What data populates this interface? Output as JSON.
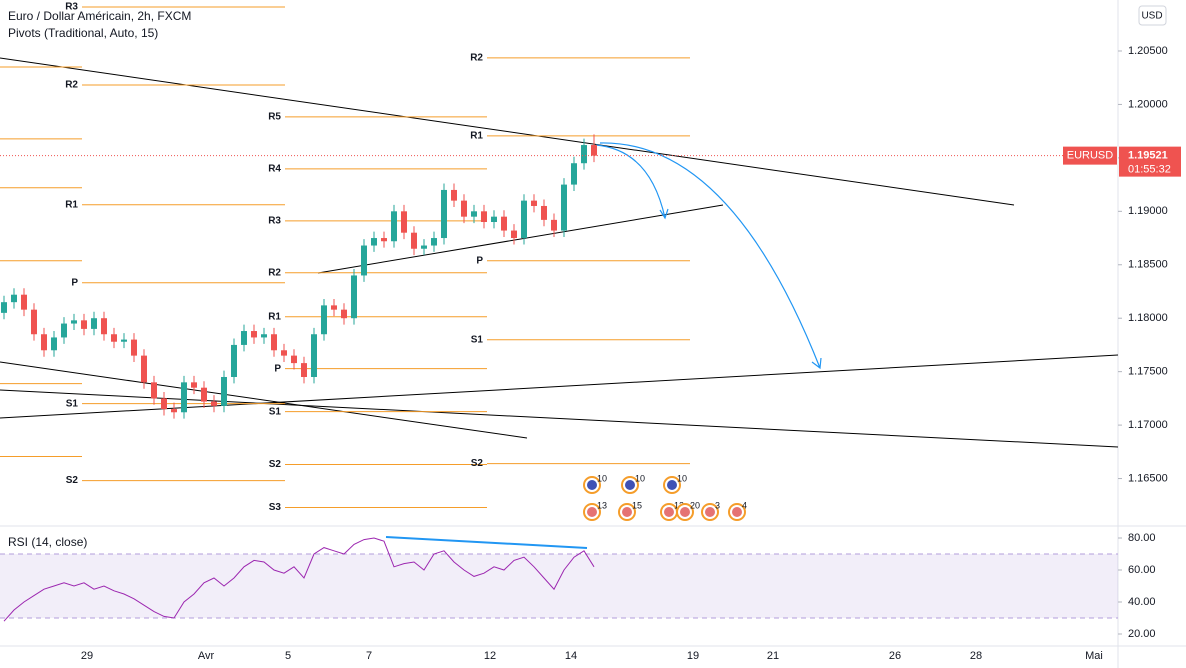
{
  "header": {
    "title": "Euro / Dollar Américain, 2h, FXCM",
    "indicator": "Pivots (Traditional, Auto, 15)",
    "currency": "USD"
  },
  "last_price": {
    "symbol": "EURUSD",
    "value": 1.19521,
    "countdown": "01:55:32"
  },
  "date_labels": [
    "29",
    "Avr",
    "5",
    "7",
    "12",
    "14",
    "19",
    "21",
    "26",
    "28",
    "Mai"
  ],
  "events": [
    "10",
    "10",
    "10",
    "13",
    "15",
    "12",
    "20",
    "3",
    "4"
  ],
  "chart_data": [
    {
      "type": "candlestick",
      "up_color": "#26a69a",
      "down_color": "#ef5350",
      "open": [
        1.1805,
        1.1815,
        1.1822,
        1.1808,
        1.1785,
        1.177,
        1.1782,
        1.1795,
        1.1798,
        1.179,
        1.18,
        1.1785,
        1.1778,
        1.178,
        1.1765,
        1.174,
        1.1725,
        1.1715,
        1.1712,
        1.174,
        1.1735,
        1.1722,
        1.1718,
        1.1745,
        1.1775,
        1.1788,
        1.1782,
        1.1785,
        1.177,
        1.1765,
        1.1758,
        1.1745,
        1.1785,
        1.1812,
        1.1808,
        1.18,
        1.184,
        1.1868,
        1.1875,
        1.1872,
        1.19,
        1.188,
        1.1865,
        1.1868,
        1.1875,
        1.192,
        1.191,
        1.1895,
        1.19,
        1.189,
        1.1895,
        1.1882,
        1.1875,
        1.191,
        1.1905,
        1.1892,
        1.1882,
        1.1925,
        1.1945,
        1.1962
      ],
      "high": [
        1.1821,
        1.1828,
        1.1828,
        1.1814,
        1.1791,
        1.1788,
        1.1801,
        1.1804,
        1.1804,
        1.1806,
        1.1806,
        1.1791,
        1.1786,
        1.1786,
        1.1771,
        1.1746,
        1.1731,
        1.1721,
        1.1746,
        1.1746,
        1.1741,
        1.1728,
        1.1751,
        1.1781,
        1.1794,
        1.1794,
        1.1791,
        1.1791,
        1.1776,
        1.1771,
        1.1764,
        1.1791,
        1.1818,
        1.1818,
        1.1814,
        1.1846,
        1.1874,
        1.1881,
        1.1881,
        1.1906,
        1.1906,
        1.1886,
        1.1874,
        1.1881,
        1.1926,
        1.1926,
        1.1916,
        1.1906,
        1.1906,
        1.1901,
        1.1901,
        1.1888,
        1.1916,
        1.1916,
        1.1911,
        1.1898,
        1.1931,
        1.1951,
        1.1968,
        1.1972
      ],
      "low": [
        1.1799,
        1.1809,
        1.1802,
        1.1779,
        1.1764,
        1.1764,
        1.1776,
        1.1789,
        1.1784,
        1.1784,
        1.1779,
        1.1772,
        1.1772,
        1.1759,
        1.1734,
        1.1719,
        1.1709,
        1.1706,
        1.1706,
        1.1729,
        1.1716,
        1.1712,
        1.1712,
        1.1739,
        1.1769,
        1.1776,
        1.1776,
        1.1764,
        1.1759,
        1.1752,
        1.1739,
        1.1739,
        1.1779,
        1.1802,
        1.1794,
        1.1794,
        1.1834,
        1.1862,
        1.1866,
        1.1866,
        1.1874,
        1.1859,
        1.1859,
        1.1862,
        1.1869,
        1.1904,
        1.1889,
        1.1889,
        1.1884,
        1.1884,
        1.1876,
        1.1869,
        1.1869,
        1.1899,
        1.1886,
        1.1876,
        1.1876,
        1.1919,
        1.1939,
        1.1946
      ],
      "close": [
        1.1815,
        1.1822,
        1.1808,
        1.1785,
        1.177,
        1.1782,
        1.1795,
        1.1798,
        1.179,
        1.18,
        1.1785,
        1.1778,
        1.178,
        1.1765,
        1.174,
        1.1725,
        1.1715,
        1.1712,
        1.174,
        1.1735,
        1.1722,
        1.1718,
        1.1745,
        1.1775,
        1.1788,
        1.1782,
        1.1785,
        1.177,
        1.1765,
        1.1758,
        1.1745,
        1.1785,
        1.1812,
        1.1808,
        1.18,
        1.184,
        1.1868,
        1.1875,
        1.1872,
        1.19,
        1.188,
        1.1865,
        1.1868,
        1.1875,
        1.192,
        1.191,
        1.1895,
        1.19,
        1.189,
        1.1895,
        1.1882,
        1.1875,
        1.191,
        1.1905,
        1.1892,
        1.1882,
        1.1925,
        1.1945,
        1.1962,
        1.19521
      ],
      "ylim": [
        1.20977,
        1.16056
      ],
      "yticks": [
        {
          "value": 1.205,
          "label": "1.20500"
        },
        {
          "value": 1.2,
          "label": "1.20000"
        },
        {
          "value": 1.195,
          "label": "1.19500"
        },
        {
          "value": 1.19,
          "label": "1.19000"
        },
        {
          "value": 1.185,
          "label": "1.18500"
        },
        {
          "value": 1.18,
          "label": "1.18000"
        },
        {
          "value": 1.175,
          "label": "1.17500"
        },
        {
          "value": 1.17,
          "label": "1.17000"
        },
        {
          "value": 1.165,
          "label": "1.16500"
        }
      ],
      "pivot_color": "#f59d2a",
      "pivots": [
        {
          "values": [
            1.2035,
            1.19678,
            1.1922,
            1.18537,
            1.17388,
            1.16706
          ]
        },
        {
          "labels": [
            "R3",
            "R2",
            "R1",
            "P",
            "S1",
            "S2"
          ],
          "values": [
            1.20911,
            1.20182,
            1.19061,
            1.18332,
            1.17201,
            1.16481
          ]
        },
        {
          "labels": [
            "R5",
            "R4",
            "R3",
            "R2",
            "R1",
            "P",
            "S1",
            "S2",
            "S3"
          ],
          "values": [
            1.19883,
            1.19397,
            1.18911,
            1.18425,
            1.18014,
            1.17528,
            1.17126,
            1.16631,
            1.16229
          ]
        },
        {
          "labels": [
            "R2",
            "R1",
            "P",
            "S1",
            "S2"
          ],
          "values": [
            1.20435,
            1.19706,
            1.18537,
            1.17799,
            1.1664
          ]
        }
      ]
    },
    {
      "type": "line",
      "title": "RSI (14, close)",
      "color": "#9c27b0",
      "values": [
        28,
        35,
        40,
        44,
        48,
        50,
        52,
        50,
        52,
        48,
        50,
        47,
        45,
        42,
        38,
        34,
        31,
        30,
        40,
        45,
        52,
        55,
        50,
        55,
        62,
        66,
        65,
        60,
        58,
        62,
        55,
        70,
        74,
        72,
        70,
        76,
        79,
        80,
        78,
        62,
        64,
        65,
        60,
        70,
        72,
        65,
        60,
        56,
        58,
        62,
        60,
        66,
        68,
        62,
        55,
        48,
        60,
        68,
        72,
        62
      ],
      "ylim": [
        87.5,
        12.5
      ],
      "band": [
        70,
        30
      ],
      "yticks": [
        {
          "value": 80,
          "label": "80.00"
        },
        {
          "value": 60,
          "label": "60.00"
        },
        {
          "value": 40,
          "label": "40.00"
        },
        {
          "value": 20,
          "label": "20.00"
        }
      ]
    }
  ]
}
